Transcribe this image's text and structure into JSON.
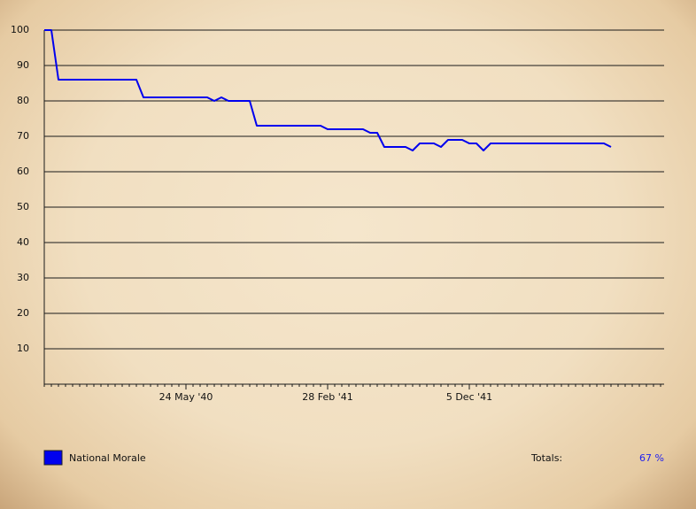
{
  "chart_data": {
    "type": "line",
    "x": [
      0,
      14,
      28,
      182,
      196,
      322,
      336,
      350,
      364,
      406,
      420,
      546,
      560,
      630,
      644,
      658,
      672,
      714,
      728,
      742,
      770,
      784,
      798,
      826,
      840,
      854,
      868,
      882,
      1106,
      1120
    ],
    "series": [
      {
        "name": "National Morale",
        "color": "#0000ee",
        "values": [
          100,
          100,
          86,
          86,
          81,
          81,
          80,
          81,
          80,
          80,
          73,
          73,
          72,
          72,
          71,
          71,
          67,
          67,
          66,
          68,
          68,
          67,
          69,
          69,
          68,
          68,
          66,
          68,
          68,
          67
        ]
      }
    ],
    "xlim": [
      0,
      1225
    ],
    "xticks": [
      {
        "value": 280,
        "label": "24 May '40"
      },
      {
        "value": 560,
        "label": "28 Feb '41"
      },
      {
        "value": 840,
        "label": "5 Dec '41"
      }
    ],
    "ylim": [
      0,
      100
    ],
    "yticks": [
      10,
      20,
      30,
      40,
      50,
      60,
      70,
      80,
      90,
      100
    ],
    "grid": true,
    "totals": {
      "label": "Totals:",
      "value": "67 %"
    }
  }
}
